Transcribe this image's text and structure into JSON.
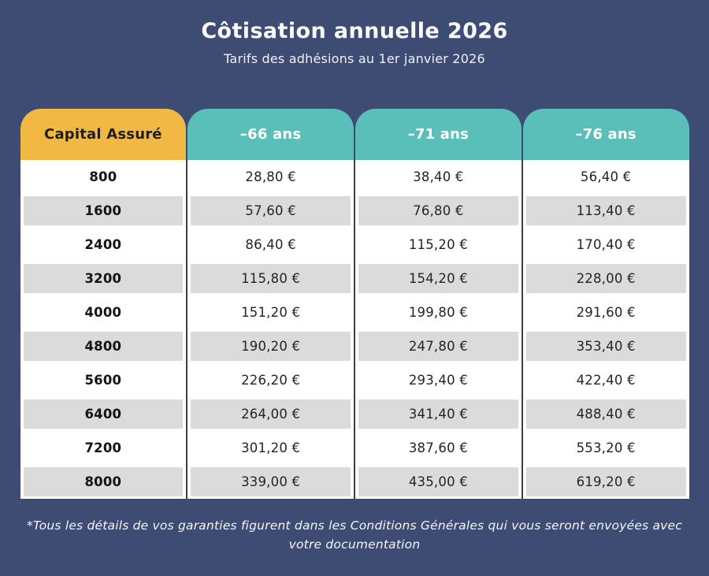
{
  "title": "Côtisation annuelle 2026",
  "subtitle": "Tarifs des adhésions au 1er janvier 2026",
  "table": {
    "capital_header": "Capital Assuré",
    "age_headers": [
      "–66 ans",
      "–71 ans",
      "–76 ans"
    ],
    "rows": [
      {
        "capital": "800",
        "values": [
          "28,80 €",
          "38,40 €",
          "56,40 €"
        ]
      },
      {
        "capital": "1600",
        "values": [
          "57,60 €",
          "76,80 €",
          "113,40 €"
        ]
      },
      {
        "capital": "2400",
        "values": [
          "86,40 €",
          "115,20 €",
          "170,40 €"
        ]
      },
      {
        "capital": "3200",
        "values": [
          "115,80 €",
          "154,20 €",
          "228,00 €"
        ]
      },
      {
        "capital": "4000",
        "values": [
          "151,20 €",
          "199,80 €",
          "291,60 €"
        ]
      },
      {
        "capital": "4800",
        "values": [
          "190,20 €",
          "247,80 €",
          "353,40 €"
        ]
      },
      {
        "capital": "5600",
        "values": [
          "226,20 €",
          "293,40 €",
          "422,40 €"
        ]
      },
      {
        "capital": "6400",
        "values": [
          "264,00 €",
          "341,40 €",
          "488,40 €"
        ]
      },
      {
        "capital": "7200",
        "values": [
          "301,20 €",
          "387,60 €",
          "553,20 €"
        ]
      },
      {
        "capital": "8000",
        "values": [
          "339,00 €",
          "435,00 €",
          "619,20 €"
        ]
      }
    ]
  },
  "footnote": "*Tous les détails de vos garanties figurent dans les Conditions Générales qui vous seront envoyées avec votre documentation",
  "colors": {
    "background": "#3E4C74",
    "capital_header_bg": "#F1B843",
    "age_header_bg": "#5ABFB9",
    "stripe": "#DBDBDB",
    "divider": "#3F3F3F"
  },
  "chart_data": {
    "type": "table",
    "title": "Côtisation annuelle 2026",
    "subtitle": "Tarifs des adhésions au 1er janvier 2026",
    "columns": [
      "Capital Assuré",
      "–66 ans",
      "–71 ans",
      "–76 ans"
    ],
    "rows": [
      [
        "800",
        "28,80 €",
        "38,40 €",
        "56,40 €"
      ],
      [
        "1600",
        "57,60 €",
        "76,80 €",
        "113,40 €"
      ],
      [
        "2400",
        "86,40 €",
        "115,20 €",
        "170,40 €"
      ],
      [
        "3200",
        "115,80 €",
        "154,20 €",
        "228,00 €"
      ],
      [
        "4000",
        "151,20 €",
        "199,80 €",
        "291,60 €"
      ],
      [
        "4800",
        "190,20 €",
        "247,80 €",
        "353,40 €"
      ],
      [
        "5600",
        "226,20 €",
        "293,40 €",
        "422,40 €"
      ],
      [
        "6400",
        "264,00 €",
        "341,40 €",
        "488,40 €"
      ],
      [
        "7200",
        "301,20 €",
        "387,60 €",
        "553,20 €"
      ],
      [
        "8000",
        "339,00 €",
        "435,00 €",
        "619,20 €"
      ]
    ],
    "footnote": "*Tous les détails de vos garanties figurent dans les Conditions Générales qui vous seront envoyées avec votre documentation"
  }
}
